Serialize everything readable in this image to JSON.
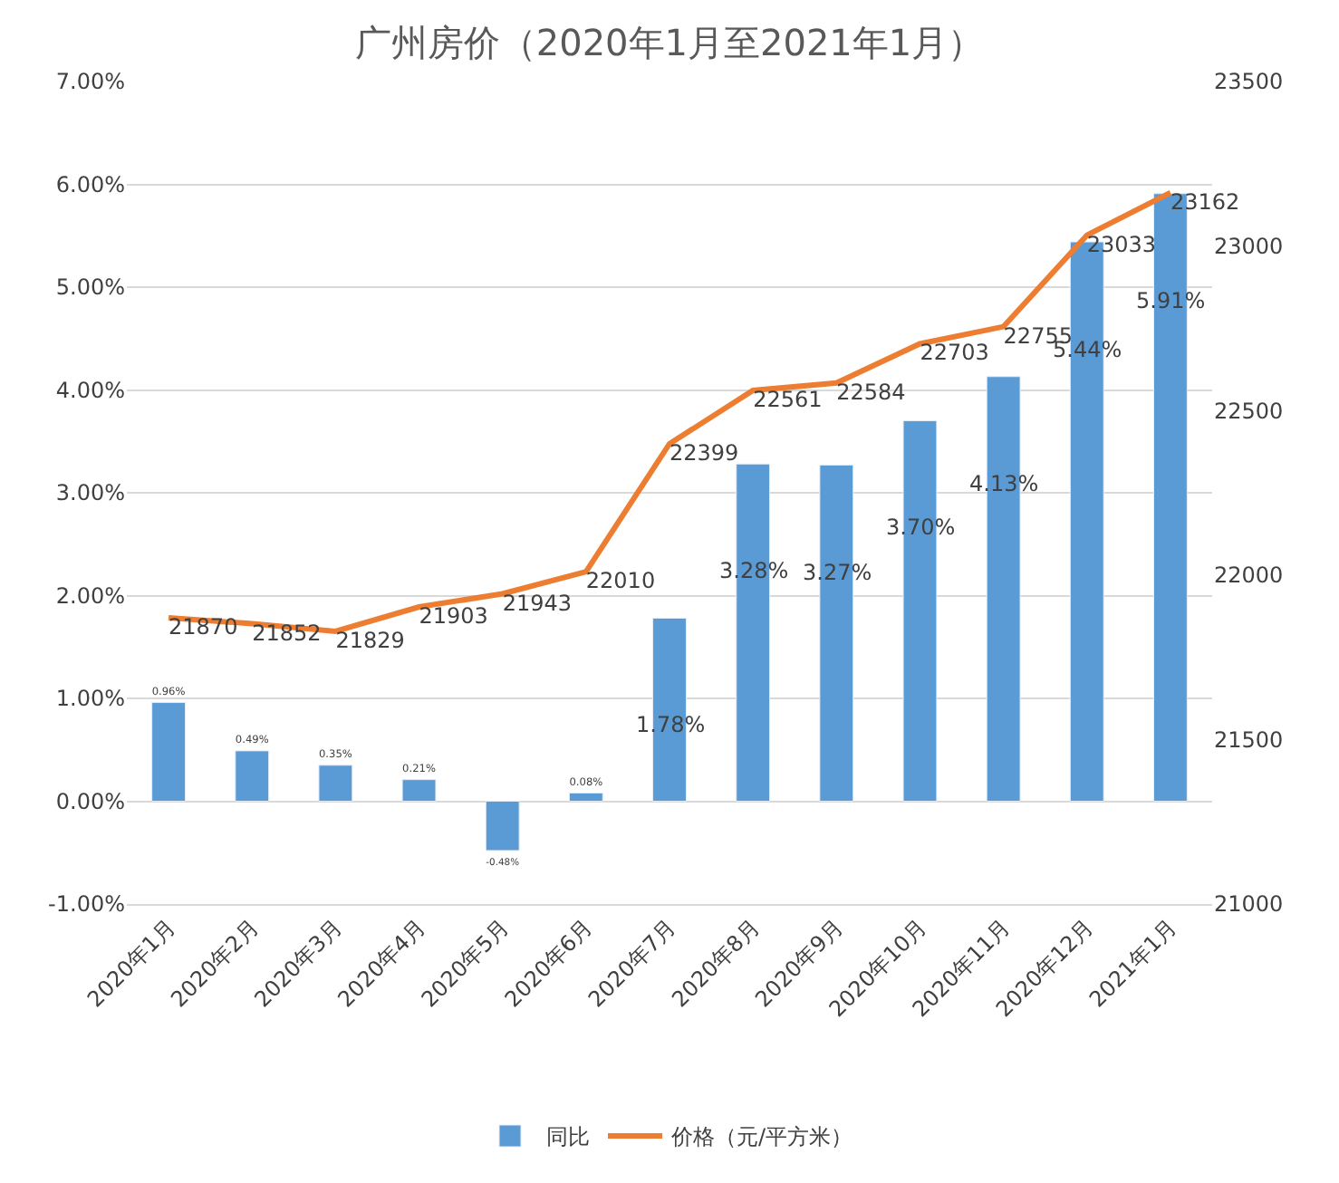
{
  "chart_data": {
    "type": "bar",
    "title": "广州房价（2020年1月至2021年1月）",
    "categories": [
      "2020年1月",
      "2020年2月",
      "2020年3月",
      "2020年4月",
      "2020年5月",
      "2020年6月",
      "2020年7月",
      "2020年8月",
      "2020年9月",
      "2020年10月",
      "2020年11月",
      "2020年12月",
      "2021年1月"
    ],
    "series": [
      {
        "name": "同比",
        "color": "#5b9bd5",
        "values": [
          0.96,
          0.49,
          0.35,
          0.21,
          -0.48,
          0.08,
          1.78,
          3.28,
          3.27,
          3.7,
          4.13,
          5.44,
          5.91
        ],
        "value_labels": [
          "0.96%",
          "0.49%",
          "0.35%",
          "0.21%",
          "-0.48%",
          "0.08%",
          "1.78%",
          "3.28%",
          "3.27%",
          "3.70%",
          "4.13%",
          "5.44%",
          "5.91%"
        ]
      },
      {
        "name": "价格（元/平方米）",
        "type": "line",
        "axis": "y2",
        "color": "#ed7d31",
        "values": [
          21870,
          21852,
          21829,
          21903,
          21943,
          22010,
          22399,
          22561,
          22584,
          22703,
          22755,
          23033,
          23162
        ],
        "value_labels": [
          "21870",
          "21852",
          "21829",
          "21903",
          "21943",
          "22010",
          "22399",
          "22561",
          "22584",
          "22703",
          "22755",
          "23033",
          "23162"
        ]
      }
    ],
    "ylim": [
      -1,
      7
    ],
    "yticks": [
      {
        "value": -1,
        "label": "-1.00%"
      },
      {
        "value": 0,
        "label": "0.00%"
      },
      {
        "value": 1,
        "label": "1.00%"
      },
      {
        "value": 2,
        "label": "2.00%"
      },
      {
        "value": 3,
        "label": "3.00%"
      },
      {
        "value": 4,
        "label": "4.00%"
      },
      {
        "value": 5,
        "label": "5.00%"
      },
      {
        "value": 6,
        "label": "6.00%"
      },
      {
        "value": 7,
        "label": "7.00%"
      }
    ],
    "y2lim": [
      21000,
      23500
    ],
    "y2ticks": [
      21000,
      21500,
      22000,
      22500,
      23000,
      23500
    ],
    "grid": "y",
    "legend": "bottom",
    "marker": "none",
    "line_style": "solid"
  }
}
